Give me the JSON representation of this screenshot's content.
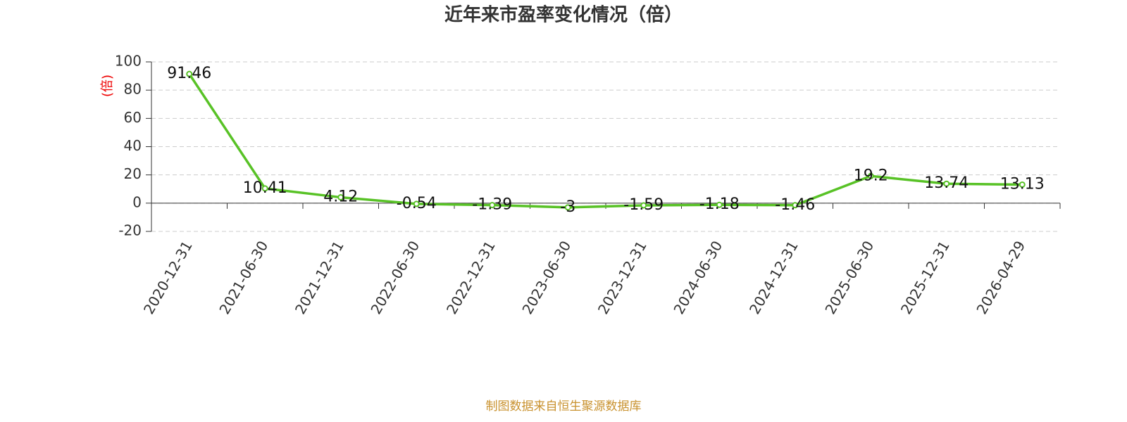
{
  "chart_data": {
    "type": "line",
    "title": "近年来市盈率变化情况（倍）",
    "y_label": "(倍)",
    "footer": "制图数据来自恒生聚源数据库",
    "categories": [
      "2020-12-31",
      "2021-06-30",
      "2021-12-31",
      "2022-06-30",
      "2022-12-31",
      "2023-06-30",
      "2023-12-31",
      "2024-06-30",
      "2024-12-31",
      "2025-06-30",
      "2025-12-31",
      "2026-04-29"
    ],
    "series": [
      {
        "name": "市盈率",
        "color": "#58c226",
        "values": [
          91.46,
          10.41,
          4.12,
          -0.54,
          -1.39,
          -3,
          -1.59,
          -1.18,
          -1.46,
          19.2,
          13.74,
          13.13
        ]
      }
    ],
    "ylim": [
      -20,
      100
    ],
    "yticks": [
      -20,
      0,
      20,
      40,
      60,
      80,
      100
    ],
    "grid": true
  }
}
